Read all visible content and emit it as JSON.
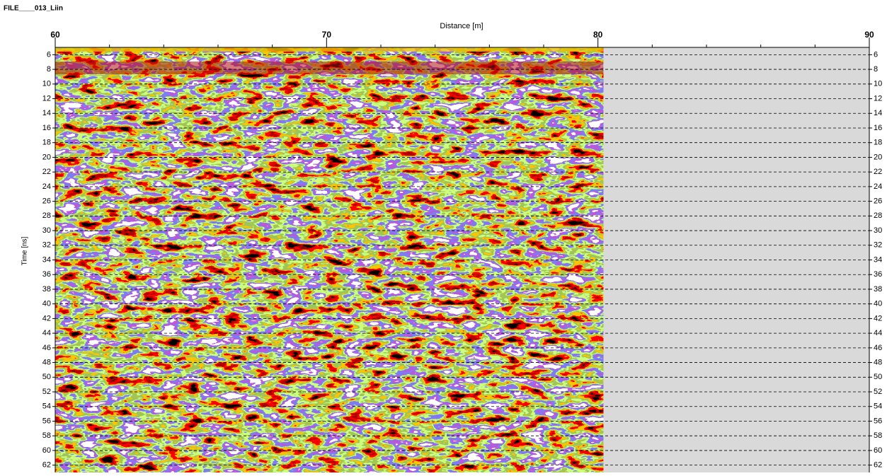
{
  "chart_data": {
    "type": "radargram",
    "title": "FILE____013_Liin",
    "x_label": "Distance [m]",
    "y_label": "Time [ns]",
    "xlim": [
      60,
      90
    ],
    "xticks": [
      60,
      70,
      80,
      90
    ],
    "xminorticks": [
      62,
      64,
      66,
      68,
      72,
      74,
      76,
      78,
      82,
      84,
      86,
      88
    ],
    "ylim": [
      5,
      63
    ],
    "yticks": [
      6,
      8,
      10,
      12,
      14,
      16,
      18,
      20,
      22,
      24,
      26,
      28,
      30,
      32,
      34,
      36,
      38,
      40,
      42,
      44,
      46,
      48,
      50,
      52,
      54,
      56,
      58,
      60,
      62
    ],
    "data_extent": [
      60,
      80.2
    ],
    "grid": true,
    "right_axis_labels": true,
    "empty_color": "#d9d9d9"
  }
}
